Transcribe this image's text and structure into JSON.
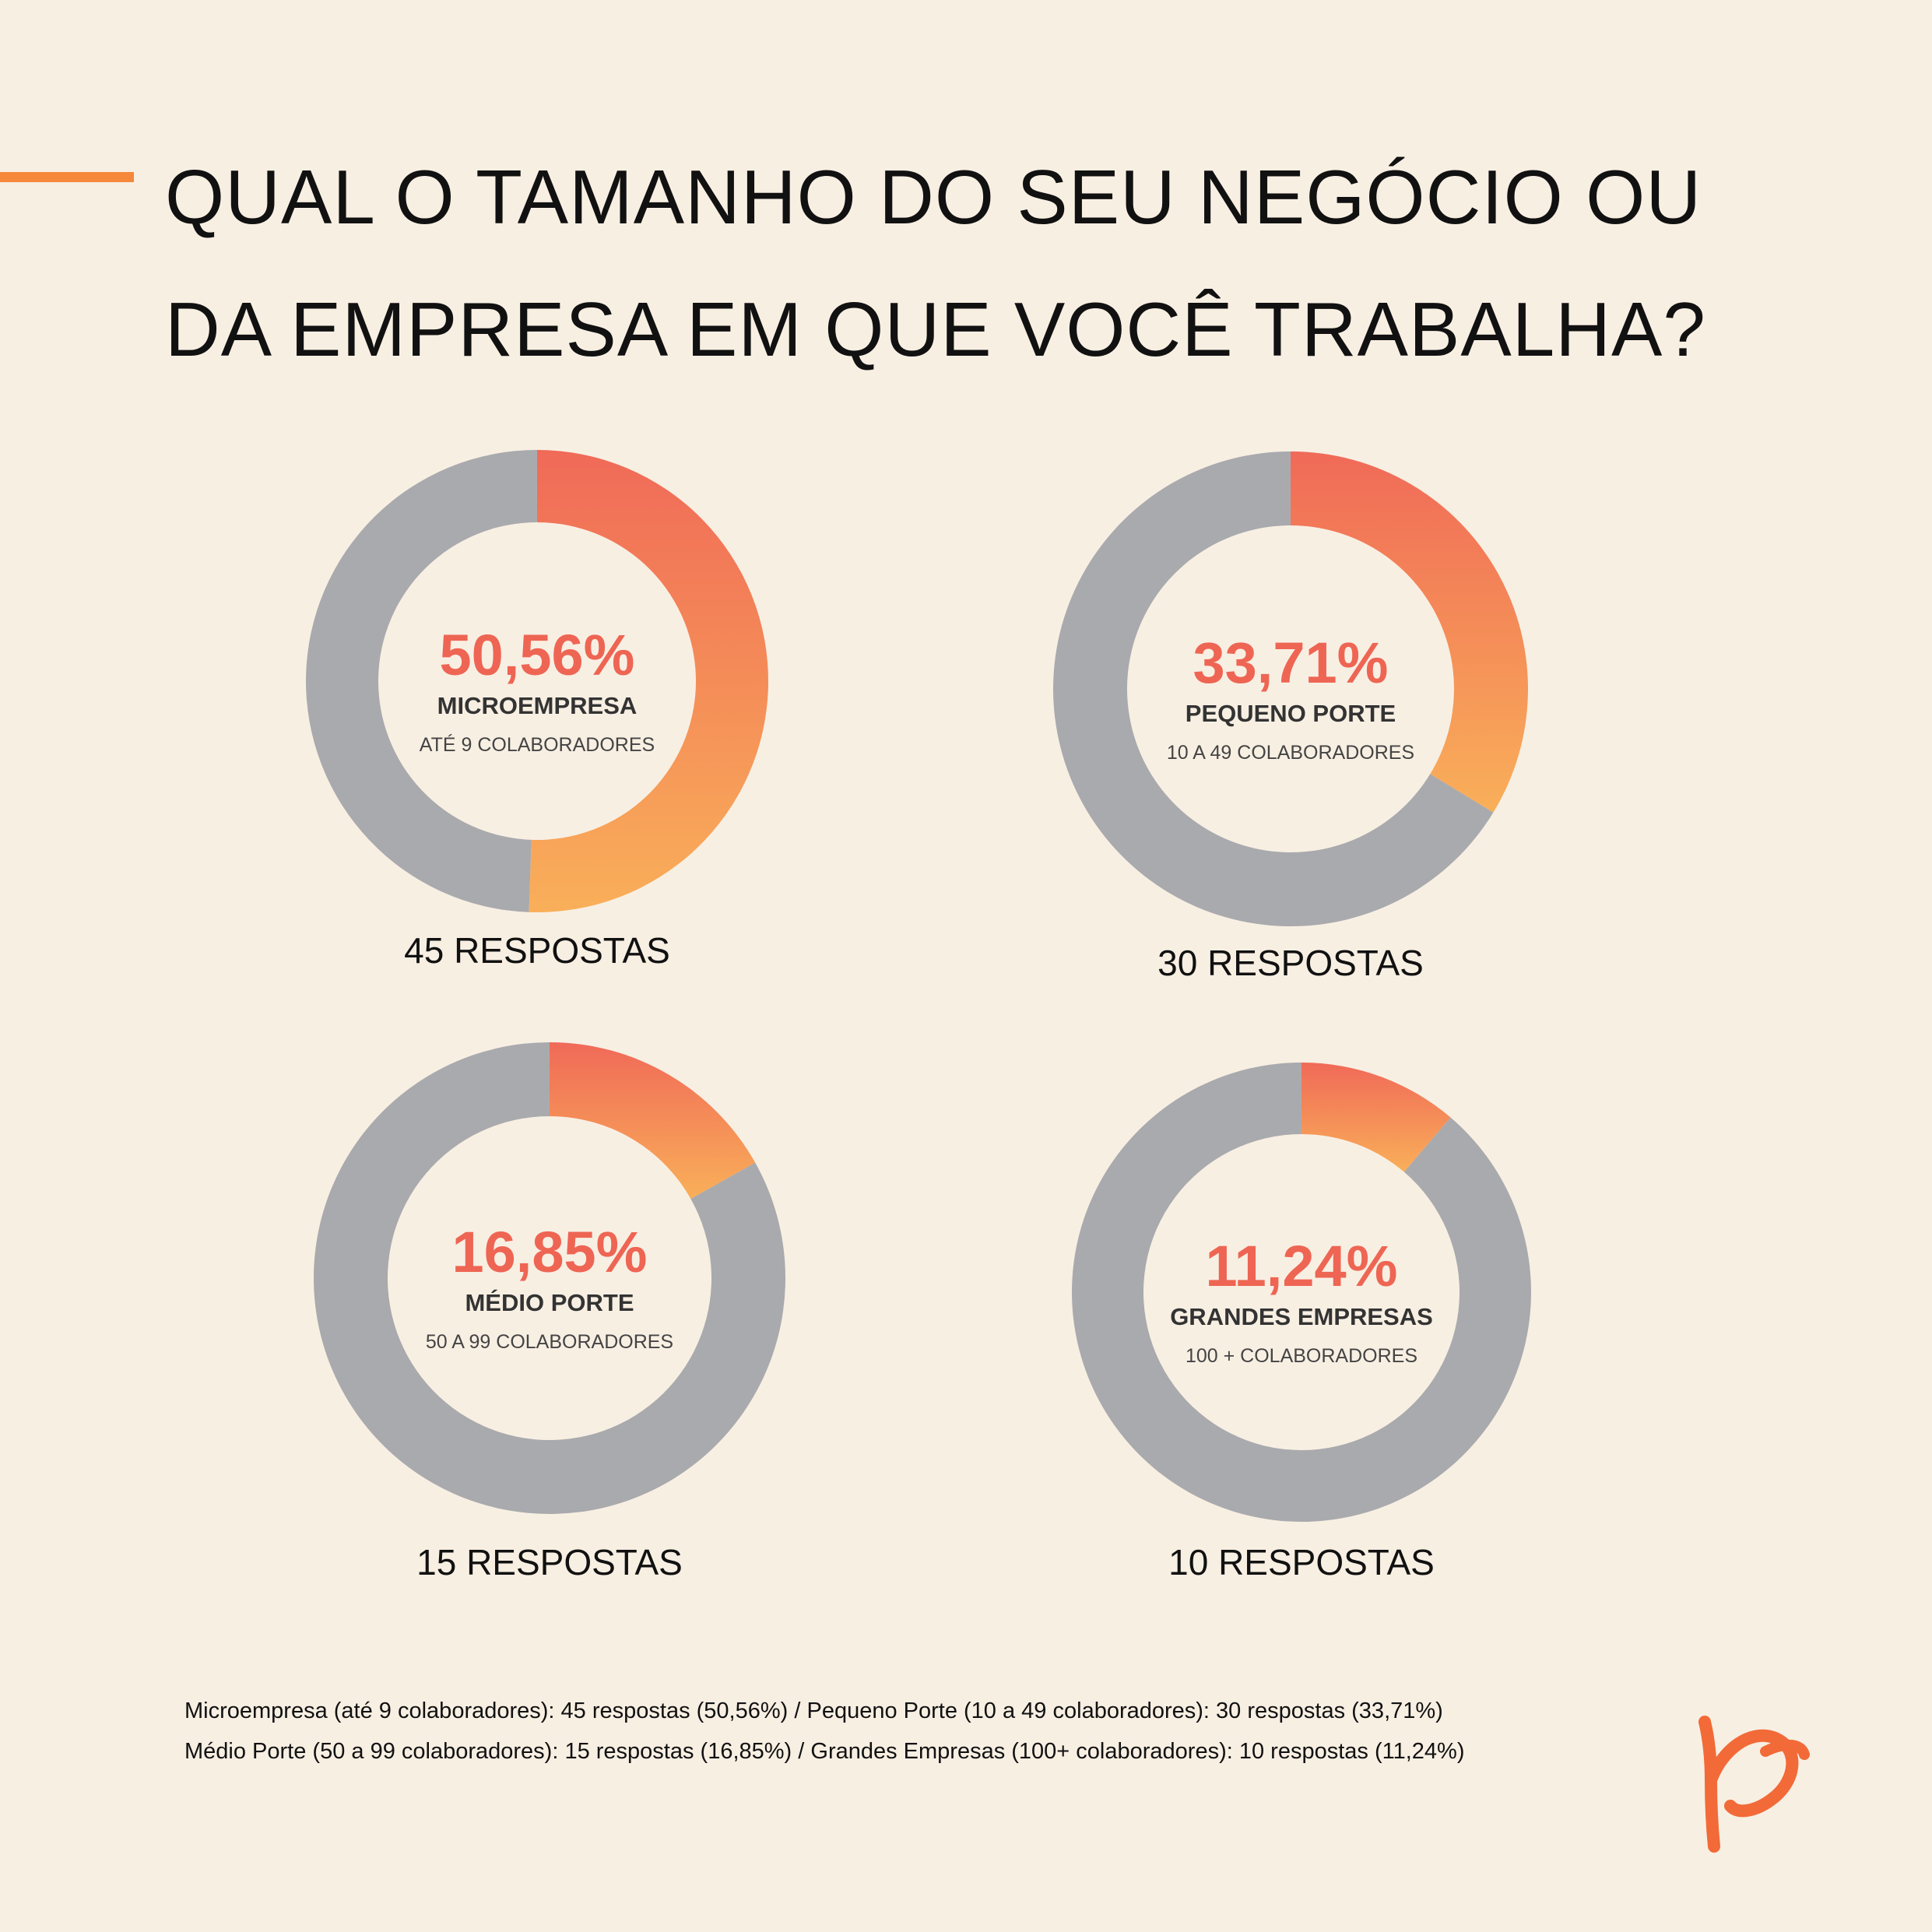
{
  "title": {
    "line1": "QUAL O TAMANHO DO SEU NEGÓCIO OU",
    "line2": "DA EMPRESA EM QUE VOCÊ TRABALHA?"
  },
  "colors": {
    "background": "#f8efe3",
    "accent": "#f5883b",
    "gradient_start": "#f06a58",
    "gradient_end": "#f9af59",
    "remainder": "#a9aaad",
    "percent_text": "#ee6553"
  },
  "chart_data": [
    {
      "type": "pie",
      "variant": "donut",
      "values": [
        50.56,
        49.44
      ],
      "percent_label": "50,56%",
      "category": "MICROEMPRESA",
      "subtitle": "ATÉ 9 COLABORADORES",
      "responses": "45 RESPOSTAS"
    },
    {
      "type": "pie",
      "variant": "donut",
      "values": [
        33.71,
        66.29
      ],
      "percent_label": "33,71%",
      "category": "PEQUENO PORTE",
      "subtitle": "10 A 49 COLABORADORES",
      "responses": "30 RESPOSTAS"
    },
    {
      "type": "pie",
      "variant": "donut",
      "values": [
        16.85,
        83.15
      ],
      "percent_label": "16,85%",
      "category": "MÉDIO PORTE",
      "subtitle": "50 A 99 COLABORADORES",
      "responses": "15 RESPOSTAS"
    },
    {
      "type": "pie",
      "variant": "donut",
      "values": [
        11.24,
        88.76
      ],
      "percent_label": "11,24%",
      "category": "GRANDES EMPRESAS",
      "subtitle": "100 + COLABORADORES",
      "responses": "10 RESPOSTAS"
    }
  ],
  "footer": {
    "line1": "Microempresa (até 9 colaboradores): 45 respostas (50,56%) / Pequeno Porte (10 a 49 colaboradores): 30 respostas (33,71%)",
    "line2": "Médio Porte (50 a 99 colaboradores): 15 respostas (16,85%) / Grandes Empresas (100+ colaboradores): 10 respostas (11,24%)"
  },
  "logo": {
    "icon": "brand-p-logo-icon",
    "color": "#f26a38"
  }
}
